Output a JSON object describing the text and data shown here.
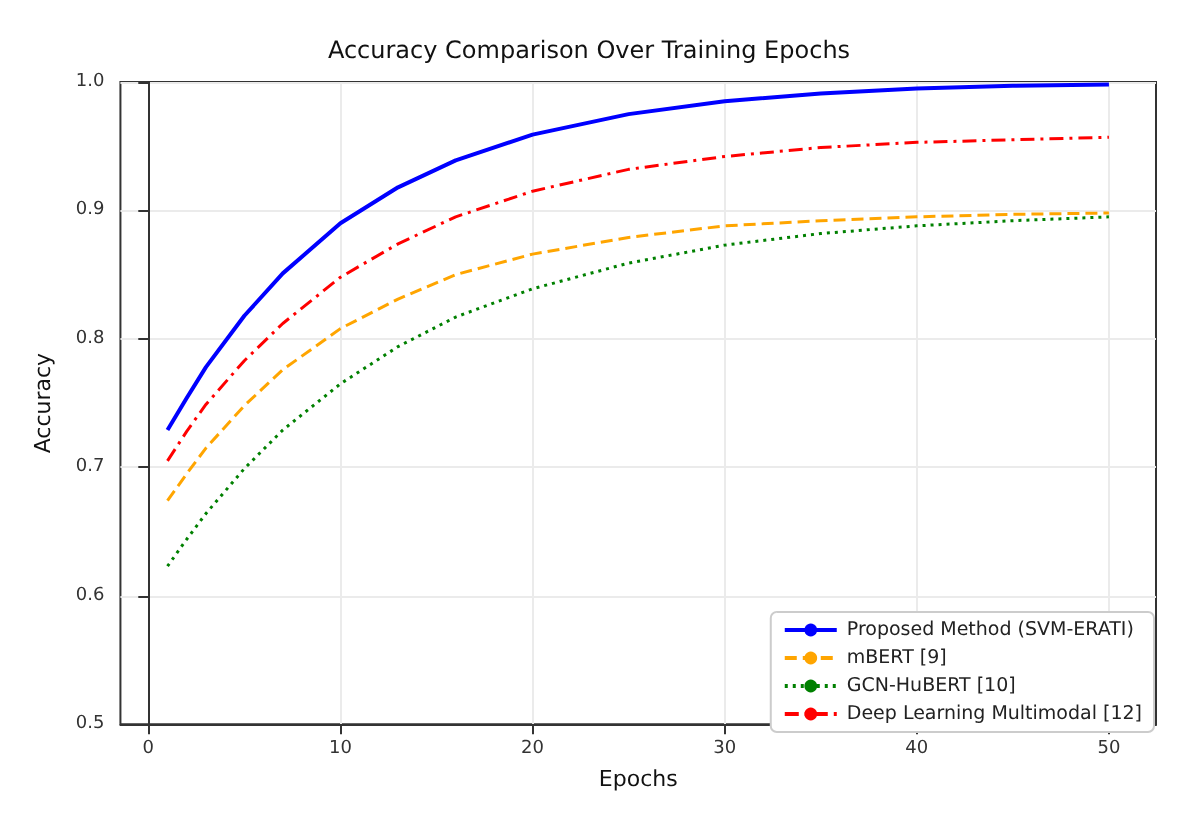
{
  "chart_data": {
    "type": "line",
    "title": "Accuracy Comparison Over Training Epochs",
    "xlabel": "Epochs",
    "ylabel": "Accuracy",
    "x": [
      1,
      2,
      3,
      5,
      7,
      10,
      13,
      16,
      20,
      25,
      30,
      35,
      40,
      45,
      50
    ],
    "xlim": [
      -1.45,
      52.45
    ],
    "xticks": [
      0,
      10,
      20,
      30,
      40,
      50
    ],
    "ylim": [
      0.5,
      1.0
    ],
    "yticks": [
      {
        "value": 0.5,
        "label": "0.5"
      },
      {
        "value": 0.6,
        "label": "0.6"
      },
      {
        "value": 0.7,
        "label": "0.7"
      },
      {
        "value": 0.8,
        "label": "0.8"
      },
      {
        "value": 0.9,
        "label": "0.9"
      },
      {
        "value": 1.0,
        "label": "1.0"
      }
    ],
    "grid": true,
    "legend": "bottom right",
    "marker": "none",
    "series": [
      {
        "name": "Proposed Method (SVM-ERATI)",
        "color": "#0000ff",
        "line_style": "solid",
        "values": [
          0.729,
          0.754,
          0.778,
          0.818,
          0.851,
          0.89,
          0.918,
          0.939,
          0.959,
          0.975,
          0.985,
          0.991,
          0.995,
          0.997,
          0.998
        ]
      },
      {
        "name": "mBERT [9]",
        "color": "#ffa500",
        "line_style": "dashed",
        "values": [
          0.674,
          0.695,
          0.715,
          0.748,
          0.776,
          0.808,
          0.831,
          0.85,
          0.866,
          0.879,
          0.888,
          0.892,
          0.895,
          0.897,
          0.898
        ]
      },
      {
        "name": "GCN-HuBERT [10]",
        "color": "#008000",
        "line_style": "dotted",
        "values": [
          0.623,
          0.644,
          0.664,
          0.699,
          0.729,
          0.765,
          0.794,
          0.817,
          0.839,
          0.859,
          0.873,
          0.882,
          0.888,
          0.892,
          0.895
        ]
      },
      {
        "name": "Deep Learning Multimodal [12]",
        "color": "#ff0000",
        "line_style": "dashdot",
        "values": [
          0.705,
          0.728,
          0.749,
          0.783,
          0.812,
          0.848,
          0.874,
          0.895,
          0.915,
          0.932,
          0.942,
          0.949,
          0.953,
          0.955,
          0.957
        ]
      }
    ]
  }
}
